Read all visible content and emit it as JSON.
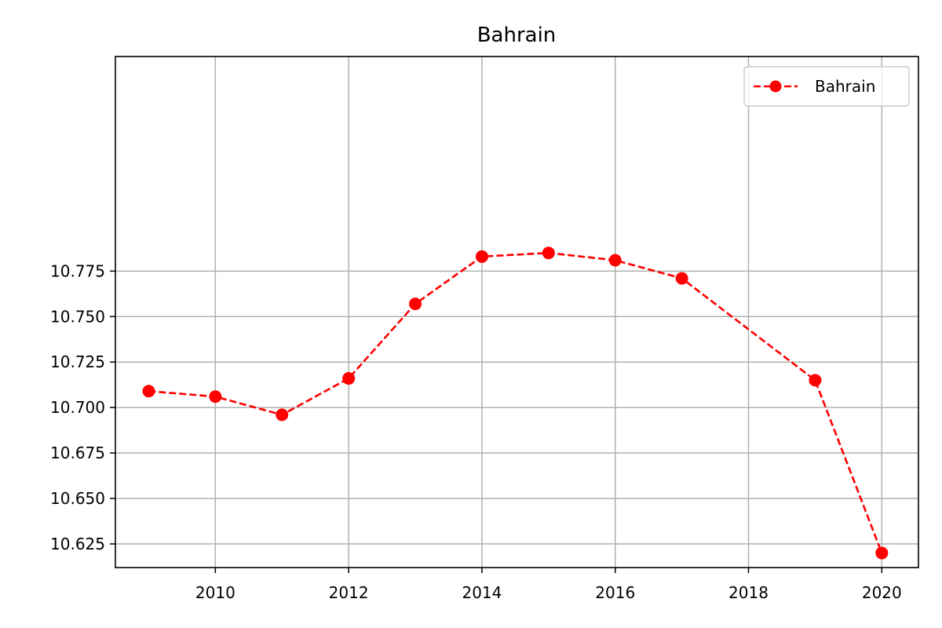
{
  "chart_data": {
    "type": "line",
    "title": "Bahrain",
    "xlabel": "",
    "ylabel": "",
    "xlim": [
      2008.5,
      2020.55
    ],
    "ylim": [
      10.612,
      10.893
    ],
    "x_ticks": [
      2010,
      2012,
      2014,
      2016,
      2018,
      2020
    ],
    "x_tick_labels": [
      "2010",
      "2012",
      "2014",
      "2016",
      "2018",
      "2020"
    ],
    "y_ticks": [
      10.625,
      10.65,
      10.675,
      10.7,
      10.725,
      10.75,
      10.775
    ],
    "y_tick_labels": [
      "10.625",
      "10.650",
      "10.675",
      "10.700",
      "10.725",
      "10.750",
      "10.775"
    ],
    "grid": true,
    "legend_position": "top-right",
    "series": [
      {
        "name": "Bahrain",
        "color": "#ff0000",
        "line_style": "dashed",
        "marker": "circle",
        "points": [
          {
            "x": 2009,
            "y": 10.709
          },
          {
            "x": 2010,
            "y": 10.706
          },
          {
            "x": 2011,
            "y": 10.696
          },
          {
            "x": 2012,
            "y": 10.716
          },
          {
            "x": 2013,
            "y": 10.757
          },
          {
            "x": 2014,
            "y": 10.783
          },
          {
            "x": 2015,
            "y": 10.785
          },
          {
            "x": 2016,
            "y": 10.781
          },
          {
            "x": 2017,
            "y": 10.771
          },
          {
            "x": 2019,
            "y": 10.715
          },
          {
            "x": 2020,
            "y": 10.62
          }
        ]
      }
    ]
  }
}
